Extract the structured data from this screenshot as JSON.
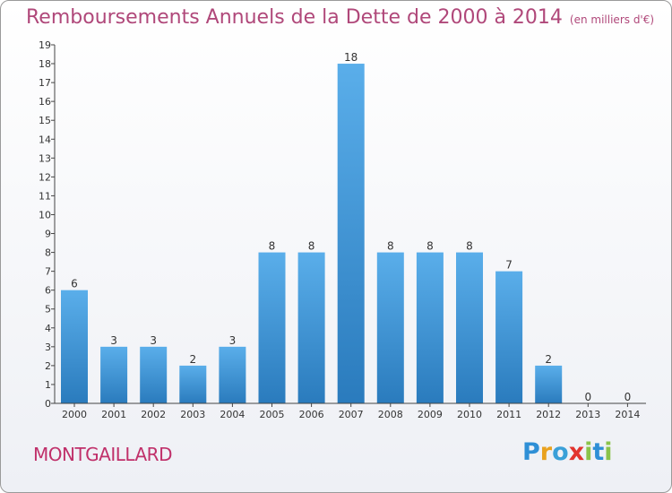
{
  "title": "Remboursements Annuels de la Dette de 2000 à 2014",
  "unit_note": "(en milliers d'€)",
  "commune": "MONTGAILLARD",
  "logo": {
    "letters": [
      "P",
      "r",
      "o",
      "x",
      "i",
      "t",
      "i"
    ],
    "colors": [
      "#2e8fd6",
      "#e9a21f",
      "#3aa0d8",
      "#e2332d",
      "#8bc34a",
      "#2e8fd6",
      "#8bc34a"
    ]
  },
  "chart_data": {
    "type": "bar",
    "categories": [
      "2000",
      "2001",
      "2002",
      "2003",
      "2004",
      "2005",
      "2006",
      "2007",
      "2008",
      "2009",
      "2010",
      "2011",
      "2012",
      "2013",
      "2014"
    ],
    "values": [
      6,
      3,
      3,
      2,
      3,
      8,
      8,
      18,
      8,
      8,
      8,
      7,
      2,
      0,
      0
    ],
    "data_labels": [
      "6",
      "3",
      "3",
      "2",
      "3",
      "8",
      "8",
      "18",
      "8",
      "8",
      "8",
      "7",
      "2",
      "0",
      "0"
    ],
    "yticks": [
      0,
      1,
      2,
      3,
      4,
      5,
      6,
      7,
      8,
      9,
      10,
      11,
      12,
      13,
      14,
      15,
      16,
      17,
      18,
      19
    ],
    "ylim": [
      0,
      19
    ],
    "bar_color_top": "#5aaeea",
    "bar_color_bottom": "#2a7bbd",
    "grid": false
  }
}
